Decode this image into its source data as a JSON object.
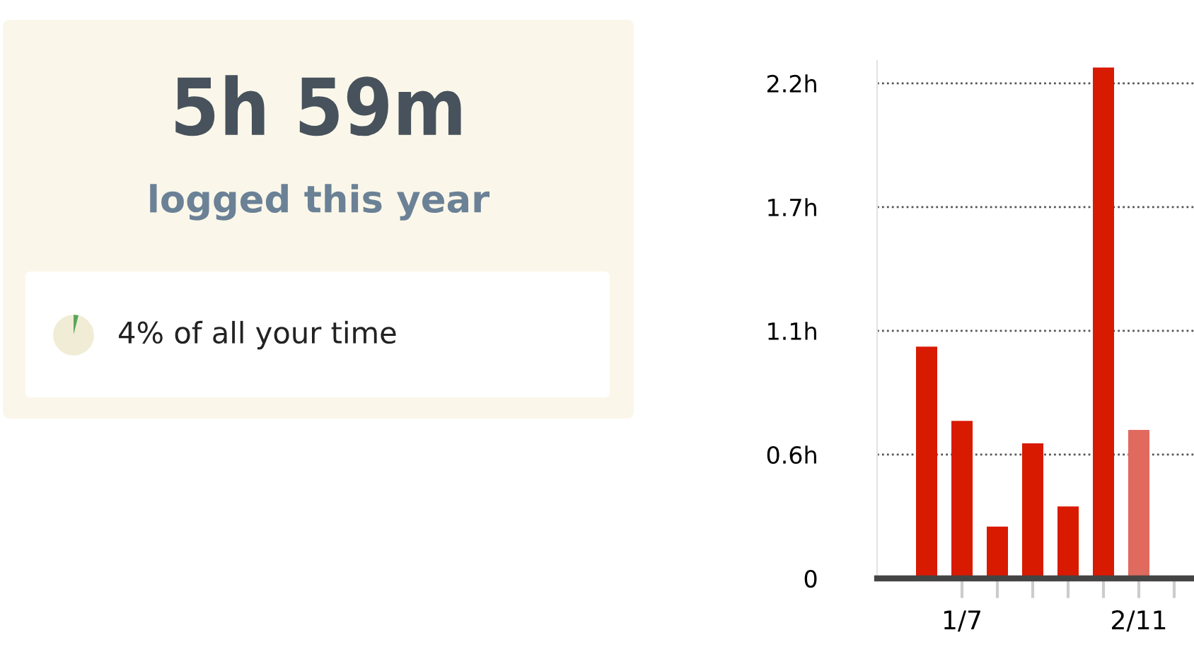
{
  "chart_data": [
    {
      "type": "other",
      "title": "5h 59m",
      "subtitle": "logged this year"
    },
    {
      "type": "pie",
      "categories": [
        null,
        null
      ],
      "values": [
        4,
        96
      ],
      "colors": [
        "#5aa55a",
        "#f1ecd6"
      ],
      "annotations": [
        "4% of all your time"
      ]
    },
    {
      "type": "bar",
      "categories": [
        null,
        "1/7",
        null,
        null,
        null,
        null,
        "2/11"
      ],
      "values": [
        1.03,
        0.7,
        0.23,
        0.6,
        0.32,
        2.27,
        0.66
      ],
      "colors": [
        "#d81a00",
        "#d81a00",
        "#d81a00",
        "#d81a00",
        "#d81a00",
        "#d81a00",
        "#e06a5e"
      ],
      "yticks": [
        0,
        {
          "value": 0.55,
          "label": "0.6h"
        },
        {
          "value": 1.1,
          "label": "1.1h"
        },
        {
          "value": 1.65,
          "label": "1.7h"
        },
        {
          "value": 2.2,
          "label": "2.2h"
        }
      ],
      "ylim": [
        0,
        2.3
      ],
      "grid": "y"
    }
  ]
}
